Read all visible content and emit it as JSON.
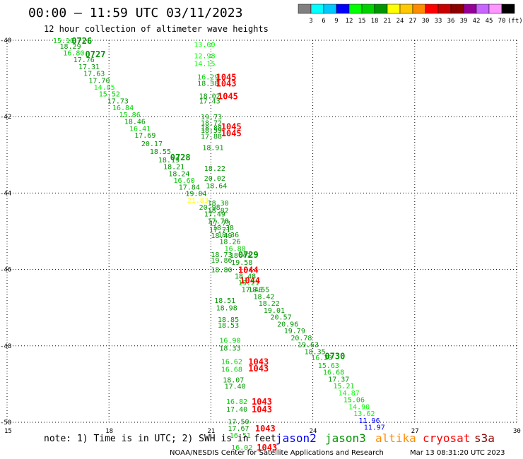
{
  "header": {
    "title": "00:00 – 11:59 UTC 03/11/2023",
    "subtitle": "12 hour collection of altimeter wave heights"
  },
  "colorbar": {
    "unit": "(ft)",
    "colors": [
      "#808080",
      "#00ffff",
      "#00c8ff",
      "#0000ff",
      "#00ff00",
      "#00d200",
      "#009600",
      "#ffff00",
      "#ffc800",
      "#ff8c00",
      "#ff0000",
      "#c80000",
      "#8c0000",
      "#960096",
      "#c864ff",
      "#ff96ff",
      "#000000"
    ],
    "labels": [
      "3",
      "6",
      "9",
      "12",
      "15",
      "18",
      "21",
      "24",
      "27",
      "30",
      "33",
      "36",
      "39",
      "42",
      "45",
      "70"
    ]
  },
  "footer": {
    "note": "note: 1) Time is in UTC; 2) SWH is in feet",
    "satellites": [
      {
        "name": "jason2",
        "color": "#0000ff"
      },
      {
        "name": "jason3",
        "color": "#009600"
      },
      {
        "name": "altika",
        "color": "#ff8c00"
      },
      {
        "name": "cryosat",
        "color": "#ff0000"
      },
      {
        "name": "s3a",
        "color": "#8c0000"
      }
    ],
    "credit": "NOAA/NESDIS Center for Satellite Applications and Research",
    "generated": "Mar 13 08:31:20 UTC 2023"
  },
  "chart_data": {
    "type": "scatter",
    "xlabel": "",
    "ylabel": "",
    "xlim": [
      15,
      30
    ],
    "ylim": [
      -50,
      -40
    ],
    "x_ticks": [
      15,
      18,
      21,
      24,
      27,
      30
    ],
    "y_ticks": [
      -40,
      -42,
      -44,
      -46,
      -48,
      -50
    ],
    "grid": true,
    "times": [
      {
        "label": "0726",
        "x": 16.9,
        "y": -40.0
      },
      {
        "label": "0727",
        "x": 17.3,
        "y": -40.35
      },
      {
        "label": "0728",
        "x": 19.8,
        "y": -43.05
      },
      {
        "label": "0729",
        "x": 21.8,
        "y": -45.6
      },
      {
        "label": "0730",
        "x": 24.35,
        "y": -48.25
      }
    ],
    "observations": [
      {
        "v": "15.16",
        "x": 16.35,
        "y": -40.0,
        "c": "#00d200"
      },
      {
        "v": "18.29",
        "x": 16.55,
        "y": -40.15,
        "c": "#009600"
      },
      {
        "v": "16.80",
        "x": 16.65,
        "y": -40.32,
        "c": "#00d200"
      },
      {
        "v": "17.76",
        "x": 16.95,
        "y": -40.5,
        "c": "#009600"
      },
      {
        "v": "17.31",
        "x": 17.1,
        "y": -40.68,
        "c": "#009600"
      },
      {
        "v": "17.63",
        "x": 17.25,
        "y": -40.86,
        "c": "#009600"
      },
      {
        "v": "17.70",
        "x": 17.4,
        "y": -41.04,
        "c": "#009600"
      },
      {
        "v": "14.85",
        "x": 17.55,
        "y": -41.22,
        "c": "#00ff00"
      },
      {
        "v": "15.52",
        "x": 17.7,
        "y": -41.4,
        "c": "#00d200"
      },
      {
        "v": "17.73",
        "x": 17.95,
        "y": -41.58,
        "c": "#009600"
      },
      {
        "v": "16.84",
        "x": 18.1,
        "y": -41.76,
        "c": "#00d200"
      },
      {
        "v": "15.86",
        "x": 18.3,
        "y": -41.94,
        "c": "#00d200"
      },
      {
        "v": "18.46",
        "x": 18.45,
        "y": -42.12,
        "c": "#009600"
      },
      {
        "v": "16.41",
        "x": 18.6,
        "y": -42.3,
        "c": "#00d200"
      },
      {
        "v": "17.69",
        "x": 18.75,
        "y": -42.48,
        "c": "#009600"
      },
      {
        "v": "20.17",
        "x": 18.95,
        "y": -42.7,
        "c": "#009600"
      },
      {
        "v": "18.55",
        "x": 19.2,
        "y": -42.9,
        "c": "#009600"
      },
      {
        "v": "18.19",
        "x": 19.45,
        "y": -43.12,
        "c": "#009600"
      },
      {
        "v": "18.21",
        "x": 19.6,
        "y": -43.3,
        "c": "#009600"
      },
      {
        "v": "18.24",
        "x": 19.75,
        "y": -43.48,
        "c": "#009600"
      },
      {
        "v": "16.60",
        "x": 19.9,
        "y": -43.66,
        "c": "#00d200"
      },
      {
        "v": "17.84",
        "x": 20.05,
        "y": -43.84,
        "c": "#009600"
      },
      {
        "v": "19.04",
        "x": 20.25,
        "y": -44.0,
        "c": "#009600"
      },
      {
        "v": "21.83",
        "x": 20.3,
        "y": -44.18,
        "c": "#ffff00"
      },
      {
        "v": "20.98",
        "x": 20.65,
        "y": -44.36,
        "c": "#009600"
      },
      {
        "v": "17.49",
        "x": 20.8,
        "y": -44.54,
        "c": "#009600"
      },
      {
        "v": "17.78",
        "x": 20.9,
        "y": -44.72,
        "c": "#009600"
      },
      {
        "v": "18.38",
        "x": 21.05,
        "y": -44.9,
        "c": "#009600"
      },
      {
        "v": "18.36",
        "x": 21.2,
        "y": -45.08,
        "c": "#009600"
      },
      {
        "v": "18.26",
        "x": 21.25,
        "y": -45.26,
        "c": "#009600"
      },
      {
        "v": "16.80",
        "x": 21.4,
        "y": -45.44,
        "c": "#00d200"
      },
      {
        "v": "18.47",
        "x": 21.55,
        "y": -45.62,
        "c": "#009600"
      },
      {
        "v": "19.58",
        "x": 21.6,
        "y": -45.8,
        "c": "#009600"
      },
      {
        "v": "18.48",
        "x": 21.7,
        "y": -46.16,
        "c": "#009600"
      },
      {
        "v": "15.21",
        "x": 21.8,
        "y": -46.34,
        "c": "#00d200"
      },
      {
        "v": "17.46",
        "x": 21.9,
        "y": -46.52,
        "c": "#009600"
      },
      {
        "v": "18.55",
        "x": 22.1,
        "y": -46.52,
        "c": "#009600"
      },
      {
        "v": "18.42",
        "x": 22.25,
        "y": -46.7,
        "c": "#009600"
      },
      {
        "v": "18.22",
        "x": 22.4,
        "y": -46.88,
        "c": "#009600"
      },
      {
        "v": "19.01",
        "x": 22.55,
        "y": -47.06,
        "c": "#009600"
      },
      {
        "v": "20.57",
        "x": 22.75,
        "y": -47.24,
        "c": "#009600"
      },
      {
        "v": "20.96",
        "x": 22.95,
        "y": -47.42,
        "c": "#009600"
      },
      {
        "v": "19.79",
        "x": 23.15,
        "y": -47.6,
        "c": "#009600"
      },
      {
        "v": "20.78",
        "x": 23.35,
        "y": -47.78,
        "c": "#009600"
      },
      {
        "v": "19.63",
        "x": 23.55,
        "y": -47.96,
        "c": "#009600"
      },
      {
        "v": "18.35",
        "x": 23.75,
        "y": -48.14,
        "c": "#009600"
      },
      {
        "v": "16.20",
        "x": 23.95,
        "y": -48.3,
        "c": "#00d200"
      },
      {
        "v": "15.63",
        "x": 24.15,
        "y": -48.5,
        "c": "#00d200"
      },
      {
        "v": "16.68",
        "x": 24.3,
        "y": -48.68,
        "c": "#00d200"
      },
      {
        "v": "17.37",
        "x": 24.45,
        "y": -48.86,
        "c": "#009600"
      },
      {
        "v": "15.21",
        "x": 24.6,
        "y": -49.04,
        "c": "#00d200"
      },
      {
        "v": "14.87",
        "x": 24.75,
        "y": -49.22,
        "c": "#00ff00"
      },
      {
        "v": "15.06",
        "x": 24.9,
        "y": -49.4,
        "c": "#00d200"
      },
      {
        "v": "14.90",
        "x": 25.05,
        "y": -49.58,
        "c": "#00ff00"
      },
      {
        "v": "13.62",
        "x": 25.2,
        "y": -49.76,
        "c": "#00ff00"
      },
      {
        "v": "11.96",
        "x": 25.35,
        "y": -49.94,
        "c": "#0000ff"
      },
      {
        "v": "11.97",
        "x": 25.5,
        "y": -50.12,
        "c": "#0000ff"
      },
      {
        "v": "13.60",
        "x": 20.5,
        "y": -40.1,
        "c": "#00ff00"
      },
      {
        "v": "12.98",
        "x": 20.5,
        "y": -40.4,
        "c": "#00ff00"
      },
      {
        "v": "14.15",
        "x": 20.5,
        "y": -40.6,
        "c": "#00ff00"
      },
      {
        "v": "16.29",
        "x": 20.6,
        "y": -40.95,
        "c": "#00d200"
      },
      {
        "v": "18.38",
        "x": 20.6,
        "y": -41.12,
        "c": "#009600"
      },
      {
        "v": "18.02",
        "x": 20.65,
        "y": -41.45,
        "c": "#009600"
      },
      {
        "v": "17.43",
        "x": 20.65,
        "y": -41.58,
        "c": "#009600"
      },
      {
        "v": "19.73",
        "x": 20.7,
        "y": -42.0,
        "c": "#009600"
      },
      {
        "v": "18.72",
        "x": 20.7,
        "y": -42.15,
        "c": "#009600"
      },
      {
        "v": "18.88",
        "x": 20.7,
        "y": -42.28,
        "c": "#009600"
      },
      {
        "v": "18.59",
        "x": 20.7,
        "y": -42.35,
        "c": "#009600"
      },
      {
        "v": "17.88",
        "x": 20.7,
        "y": -42.5,
        "c": "#009600"
      },
      {
        "v": "18.91",
        "x": 20.75,
        "y": -42.8,
        "c": "#009600"
      },
      {
        "v": "18.22",
        "x": 20.8,
        "y": -43.35,
        "c": "#009600"
      },
      {
        "v": "20.02",
        "x": 20.8,
        "y": -43.6,
        "c": "#009600"
      },
      {
        "v": "18.64",
        "x": 20.85,
        "y": -43.8,
        "c": "#009600"
      },
      {
        "v": "18.30",
        "x": 20.9,
        "y": -44.25,
        "c": "#009600"
      },
      {
        "v": "18.82",
        "x": 20.9,
        "y": -44.45,
        "c": "#009600"
      },
      {
        "v": "17.73",
        "x": 20.95,
        "y": -44.78,
        "c": "#009600"
      },
      {
        "v": "17.71",
        "x": 20.95,
        "y": -44.95,
        "c": "#009600"
      },
      {
        "v": "18.49",
        "x": 21.0,
        "y": -45.1,
        "c": "#009600"
      },
      {
        "v": "18.73",
        "x": 21.0,
        "y": -45.6,
        "c": "#009600"
      },
      {
        "v": "19.86",
        "x": 21.0,
        "y": -45.75,
        "c": "#009600"
      },
      {
        "v": "18.80",
        "x": 21.0,
        "y": -46.0,
        "c": "#009600"
      },
      {
        "v": "18.51",
        "x": 21.1,
        "y": -46.8,
        "c": "#009600"
      },
      {
        "v": "18.98",
        "x": 21.15,
        "y": -47.0,
        "c": "#009600"
      },
      {
        "v": "18.85",
        "x": 21.2,
        "y": -47.3,
        "c": "#009600"
      },
      {
        "v": "18.53",
        "x": 21.2,
        "y": -47.45,
        "c": "#009600"
      },
      {
        "v": "16.90",
        "x": 21.25,
        "y": -47.85,
        "c": "#00d200"
      },
      {
        "v": "18.33",
        "x": 21.25,
        "y": -48.05,
        "c": "#009600"
      },
      {
        "v": "16.62",
        "x": 21.3,
        "y": -48.4,
        "c": "#00d200"
      },
      {
        "v": "16.68",
        "x": 21.3,
        "y": -48.6,
        "c": "#00d200"
      },
      {
        "v": "18.07",
        "x": 21.35,
        "y": -48.88,
        "c": "#009600"
      },
      {
        "v": "17.40",
        "x": 21.4,
        "y": -49.05,
        "c": "#009600"
      },
      {
        "v": "16.82",
        "x": 21.45,
        "y": -49.45,
        "c": "#00d200"
      },
      {
        "v": "17.40",
        "x": 21.45,
        "y": -49.65,
        "c": "#009600"
      },
      {
        "v": "17.50",
        "x": 21.5,
        "y": -49.97,
        "c": "#009600"
      },
      {
        "v": "17.67",
        "x": 21.5,
        "y": -50.15,
        "c": "#009600"
      },
      {
        "v": "16.51",
        "x": 21.55,
        "y": -50.33,
        "c": "#00d200"
      },
      {
        "v": "16.02",
        "x": 21.6,
        "y": -50.65,
        "c": "#00d200"
      }
    ],
    "cryosat_times": [
      {
        "label": "1045",
        "x": 21.15,
        "y": -40.95
      },
      {
        "label": "1043",
        "x": 21.15,
        "y": -41.12
      },
      {
        "label": "1045",
        "x": 21.2,
        "y": -41.45
      },
      {
        "label": "1045",
        "x": 21.3,
        "y": -42.25
      },
      {
        "label": "1045",
        "x": 21.3,
        "y": -42.42
      },
      {
        "label": "1044",
        "x": 21.8,
        "y": -46.0
      },
      {
        "label": "1044",
        "x": 21.85,
        "y": -46.28
      },
      {
        "label": "1043",
        "x": 22.1,
        "y": -48.4
      },
      {
        "label": "1043",
        "x": 22.1,
        "y": -48.58
      },
      {
        "label": "1043",
        "x": 22.2,
        "y": -49.45
      },
      {
        "label": "1043",
        "x": 22.2,
        "y": -49.65
      },
      {
        "label": "1043",
        "x": 22.3,
        "y": -50.15
      },
      {
        "label": "1043",
        "x": 22.35,
        "y": -50.65
      }
    ]
  }
}
